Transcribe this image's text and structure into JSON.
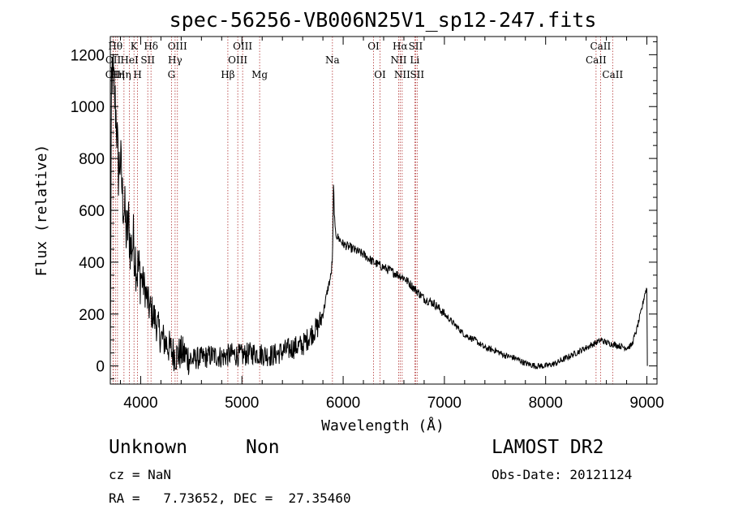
{
  "chart_data": {
    "type": "line",
    "title": "spec-56256-VB006N25V1_sp12-247.fits",
    "xlabel": "Wavelength (Å)",
    "ylabel": "Flux (relative)",
    "xlim": [
      3700,
      9100
    ],
    "ylim": [
      -70,
      1270
    ],
    "xticks": [
      4000,
      5000,
      6000,
      7000,
      8000,
      9000
    ],
    "yticks": [
      0,
      200,
      400,
      600,
      800,
      1000,
      1200
    ],
    "grid": false,
    "series": [
      {
        "x": [
          3700,
          3710,
          3720,
          3740,
          3760,
          3780,
          3800,
          3820,
          3840,
          3860,
          3880,
          3900,
          3930,
          3960,
          4000,
          4040,
          4080,
          4120,
          4160,
          4200,
          4250,
          4300,
          4350,
          4400,
          4450,
          4500,
          4550,
          4600,
          4700,
          4800,
          4900,
          5000,
          5100,
          5200,
          5300,
          5400,
          5500,
          5600,
          5700,
          5750,
          5800,
          5850,
          5880,
          5895,
          5900,
          5905,
          5910,
          5920,
          5940,
          6000,
          6100,
          6200,
          6300,
          6400,
          6500,
          6600,
          6700,
          6800,
          6900,
          7000,
          7100,
          7200,
          7300,
          7400,
          7500,
          7600,
          7700,
          7800,
          7900,
          8000,
          8100,
          8200,
          8300,
          8400,
          8500,
          8550,
          8600,
          8700,
          8800,
          8850,
          8900,
          8950,
          8980,
          9000,
          9005
        ],
        "y": [
          0,
          1000,
          1150,
          1050,
          950,
          750,
          800,
          650,
          600,
          500,
          550,
          450,
          480,
          380,
          350,
          300,
          230,
          200,
          160,
          110,
          90,
          60,
          40,
          50,
          40,
          20,
          30,
          30,
          40,
          35,
          45,
          40,
          50,
          45,
          40,
          55,
          70,
          80,
          130,
          150,
          200,
          300,
          350,
          420,
          550,
          720,
          620,
          520,
          500,
          470,
          450,
          430,
          400,
          380,
          360,
          340,
          300,
          260,
          240,
          200,
          160,
          120,
          100,
          70,
          60,
          40,
          30,
          10,
          0,
          0,
          10,
          30,
          50,
          70,
          90,
          100,
          90,
          80,
          70,
          80,
          140,
          220,
          280,
          300,
          0
        ]
      }
    ],
    "lines": [
      {
        "wl": 3727,
        "label": "OII",
        "row": 3
      },
      {
        "wl": 3729,
        "label": "OII",
        "row": 2
      },
      {
        "wl": 3750,
        "label": "Hθ",
        "row": 1
      },
      {
        "wl": 3771,
        "label": "Hη",
        "row": 3
      },
      {
        "wl": 3835,
        "label": "Hη",
        "row": 3
      },
      {
        "wl": 3889,
        "label": "HeI",
        "row": 2
      },
      {
        "wl": 3934,
        "label": "K",
        "row": 1
      },
      {
        "wl": 3969,
        "label": "H",
        "row": 3
      },
      {
        "wl": 4070,
        "label": "SII",
        "row": 2
      },
      {
        "wl": 4102,
        "label": "Hδ",
        "row": 1
      },
      {
        "wl": 4304,
        "label": "G",
        "row": 3
      },
      {
        "wl": 4340,
        "label": "Hγ",
        "row": 2
      },
      {
        "wl": 4363,
        "label": "OIII",
        "row": 1
      },
      {
        "wl": 4861,
        "label": "Hβ",
        "row": 3
      },
      {
        "wl": 4959,
        "label": "OIII",
        "row": 2
      },
      {
        "wl": 5007,
        "label": "OIII",
        "row": 1
      },
      {
        "wl": 5175,
        "label": "Mg",
        "row": 3
      },
      {
        "wl": 5894,
        "label": "Na",
        "row": 2
      },
      {
        "wl": 6300,
        "label": "OI",
        "row": 1
      },
      {
        "wl": 6364,
        "label": "OI",
        "row": 3
      },
      {
        "wl": 6548,
        "label": "NII",
        "row": 2
      },
      {
        "wl": 6563,
        "label": "Hα",
        "row": 1
      },
      {
        "wl": 6583,
        "label": "NII",
        "row": 3
      },
      {
        "wl": 6707,
        "label": "Li",
        "row": 2
      },
      {
        "wl": 6716,
        "label": "SII",
        "row": 1
      },
      {
        "wl": 6731,
        "label": "SII",
        "row": 3
      },
      {
        "wl": 8498,
        "label": "CaII",
        "row": 2
      },
      {
        "wl": 8542,
        "label": "CaII",
        "row": 1
      },
      {
        "wl": 8662,
        "label": "CaII",
        "row": 3
      }
    ]
  },
  "info": {
    "class": "Unknown",
    "subclass": "Non",
    "survey": "LAMOST DR2",
    "cz": "cz = NaN",
    "obs_date": "Obs-Date: 20121124",
    "radec": "RA =   7.73652, DEC =  27.35460"
  }
}
